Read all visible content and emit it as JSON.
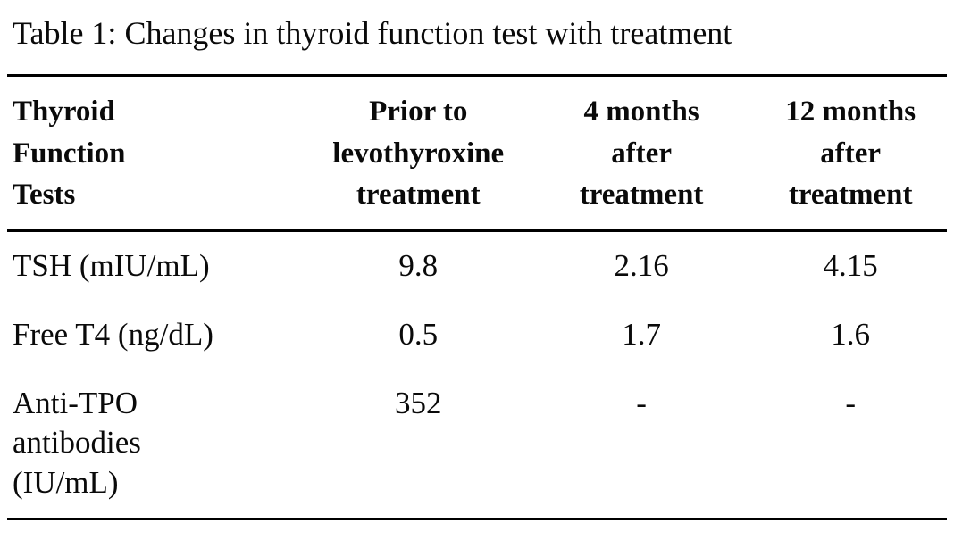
{
  "table": {
    "title": "Table 1: Changes in thyroid function test with treatment",
    "headers": [
      "Thyroid\nFunction\nTests",
      "Prior to\nlevothyroxine\ntreatment",
      "4 months\nafter\ntreatment",
      "12 months\nafter\ntreatment"
    ],
    "rows": [
      {
        "label": "TSH (mIU/mL)",
        "values": [
          "9.8",
          "2.16",
          "4.15"
        ]
      },
      {
        "label": "Free T4 (ng/dL)",
        "values": [
          "0.5",
          "1.7",
          "1.6"
        ]
      },
      {
        "label": "Anti-TPO\nantibodies\n(IU/mL)",
        "values": [
          "352",
          "-",
          "-"
        ]
      }
    ],
    "colors": {
      "text": "#0a0a0a",
      "rule": "#000000",
      "background": "#ffffff"
    }
  },
  "chart_data": {
    "type": "table",
    "title": "Table 1: Changes in thyroid function test with treatment",
    "columns": [
      "Thyroid Function Tests",
      "Prior to levothyroxine treatment",
      "4 months after treatment",
      "12 months after treatment"
    ],
    "rows": [
      [
        "TSH (mIU/mL)",
        "9.8",
        "2.16",
        "4.15"
      ],
      [
        "Free T4 (ng/dL)",
        "0.5",
        "1.7",
        "1.6"
      ],
      [
        "Anti-TPO antibodies (IU/mL)",
        "352",
        "-",
        "-"
      ]
    ]
  }
}
